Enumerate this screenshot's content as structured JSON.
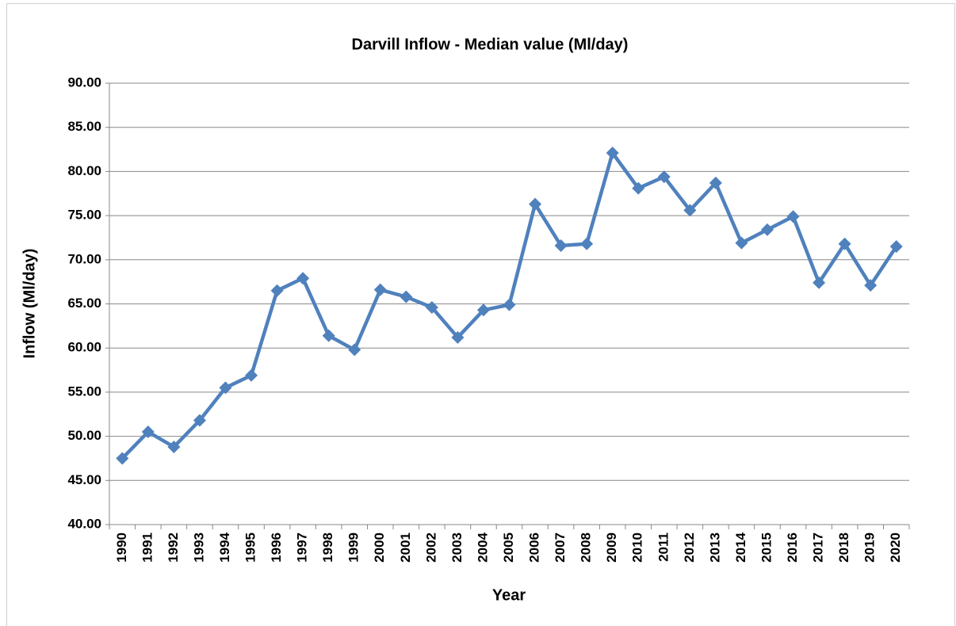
{
  "chart_data": {
    "type": "line",
    "title": "Darvill Inflow - Median value (Ml/day)",
    "x_label": "Year",
    "y_label": "Inflow (Ml/day)",
    "categories": [
      "1990",
      "1991",
      "1992",
      "1993",
      "1994",
      "1995",
      "1996",
      "1997",
      "1998",
      "1999",
      "2000",
      "2001",
      "2002",
      "2003",
      "2004",
      "2005",
      "2006",
      "2007",
      "2008",
      "2009",
      "2010",
      "2011",
      "2012",
      "2013",
      "2014",
      "2015",
      "2016",
      "2017",
      "2018",
      "2019",
      "2020"
    ],
    "series": [
      {
        "name": "Inflow",
        "color": "#4f81bd",
        "values": [
          47.5,
          50.5,
          48.8,
          51.8,
          55.5,
          56.9,
          66.5,
          67.9,
          61.4,
          59.8,
          66.6,
          65.8,
          64.6,
          61.2,
          64.3,
          64.9,
          76.3,
          71.6,
          71.8,
          82.1,
          78.1,
          79.4,
          75.6,
          78.7,
          71.9,
          73.4,
          74.9,
          67.4,
          71.8,
          67.1,
          71.5
        ]
      }
    ],
    "ylim": [
      40,
      90
    ],
    "yticks": [
      {
        "value": 40,
        "label": "40.00"
      },
      {
        "value": 45,
        "label": "45.00"
      },
      {
        "value": 50,
        "label": "50.00"
      },
      {
        "value": 55,
        "label": "55.00"
      },
      {
        "value": 60,
        "label": "60.00"
      },
      {
        "value": 65,
        "label": "65.00"
      },
      {
        "value": 70,
        "label": "70.00"
      },
      {
        "value": 75,
        "label": "75.00"
      },
      {
        "value": 80,
        "label": "80.00"
      },
      {
        "value": 85,
        "label": "85.00"
      },
      {
        "value": 90,
        "label": "90.00"
      }
    ],
    "grid": true
  }
}
